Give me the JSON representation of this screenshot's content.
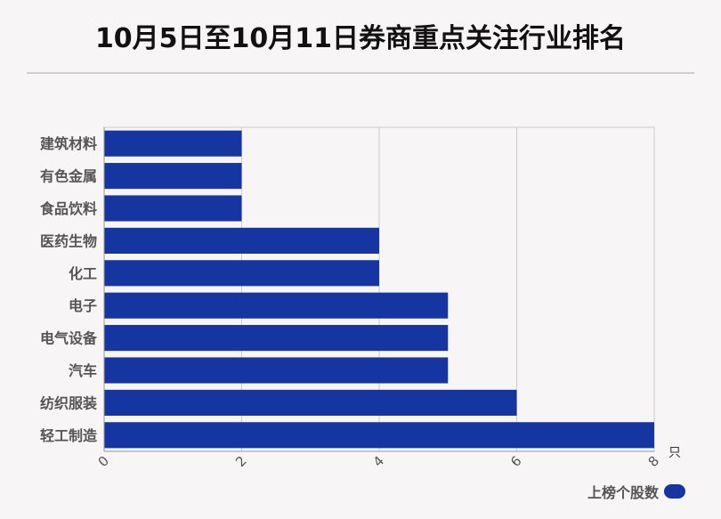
{
  "title": "10月5日至10月11日券商重点关注行业排名",
  "chart_data": {
    "type": "bar",
    "orientation": "horizontal",
    "categories": [
      "建筑材料",
      "有色金属",
      "食品饮料",
      "医药生物",
      "化工",
      "电子",
      "电气设备",
      "汽车",
      "纺织服装",
      "轻工制造"
    ],
    "series": [
      {
        "name": "上榜个股数",
        "values": [
          2,
          2,
          2,
          4,
          4,
          5,
          5,
          5,
          6,
          8
        ],
        "color": "#1535a0"
      }
    ],
    "xlim": [
      0,
      8
    ],
    "xticks": [
      "0",
      "2",
      "4",
      "6",
      "8"
    ],
    "x_unit": "只",
    "grid": true,
    "legend_position": "bottom-right"
  }
}
